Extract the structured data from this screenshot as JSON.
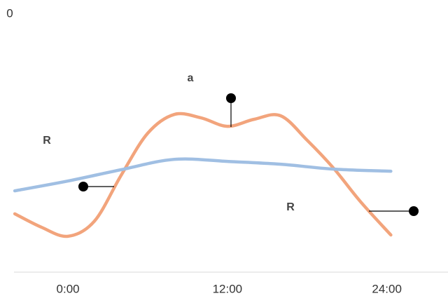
{
  "chart_data": {
    "type": "line",
    "x_unit": "hour",
    "xlim": [
      -4.06,
      28.6
    ],
    "xticks": [
      {
        "value": 0,
        "label": "0:00"
      },
      {
        "value": 12,
        "label": "12:00"
      },
      {
        "value": 24,
        "label": "24:00"
      }
    ],
    "ylim": [
      -100,
      0
    ],
    "yticks": [
      0
    ],
    "smooth": true,
    "series": [
      {
        "color": "#f2a47c",
        "x": [
          -4,
          -2,
          0,
          2,
          4,
          6,
          8,
          10,
          12,
          14,
          16,
          18,
          20,
          22,
          24.3
        ],
        "values": [
          -77.4,
          -82.6,
          -86.1,
          -80.2,
          -62.5,
          -46.2,
          -38.9,
          -40.2,
          -43.5,
          -40.8,
          -39.4,
          -48.9,
          -59.8,
          -72.6,
          -85.6
        ]
      },
      {
        "color": "#a0bfe3",
        "x": [
          -4,
          0,
          4,
          8,
          12,
          16,
          20,
          24.3
        ],
        "values": [
          -68.5,
          -64.7,
          -60.3,
          -56.3,
          -57.1,
          -58.2,
          -60.1,
          -60.9
        ]
      }
    ],
    "annotations": [
      "a",
      "R",
      "R"
    ]
  }
}
